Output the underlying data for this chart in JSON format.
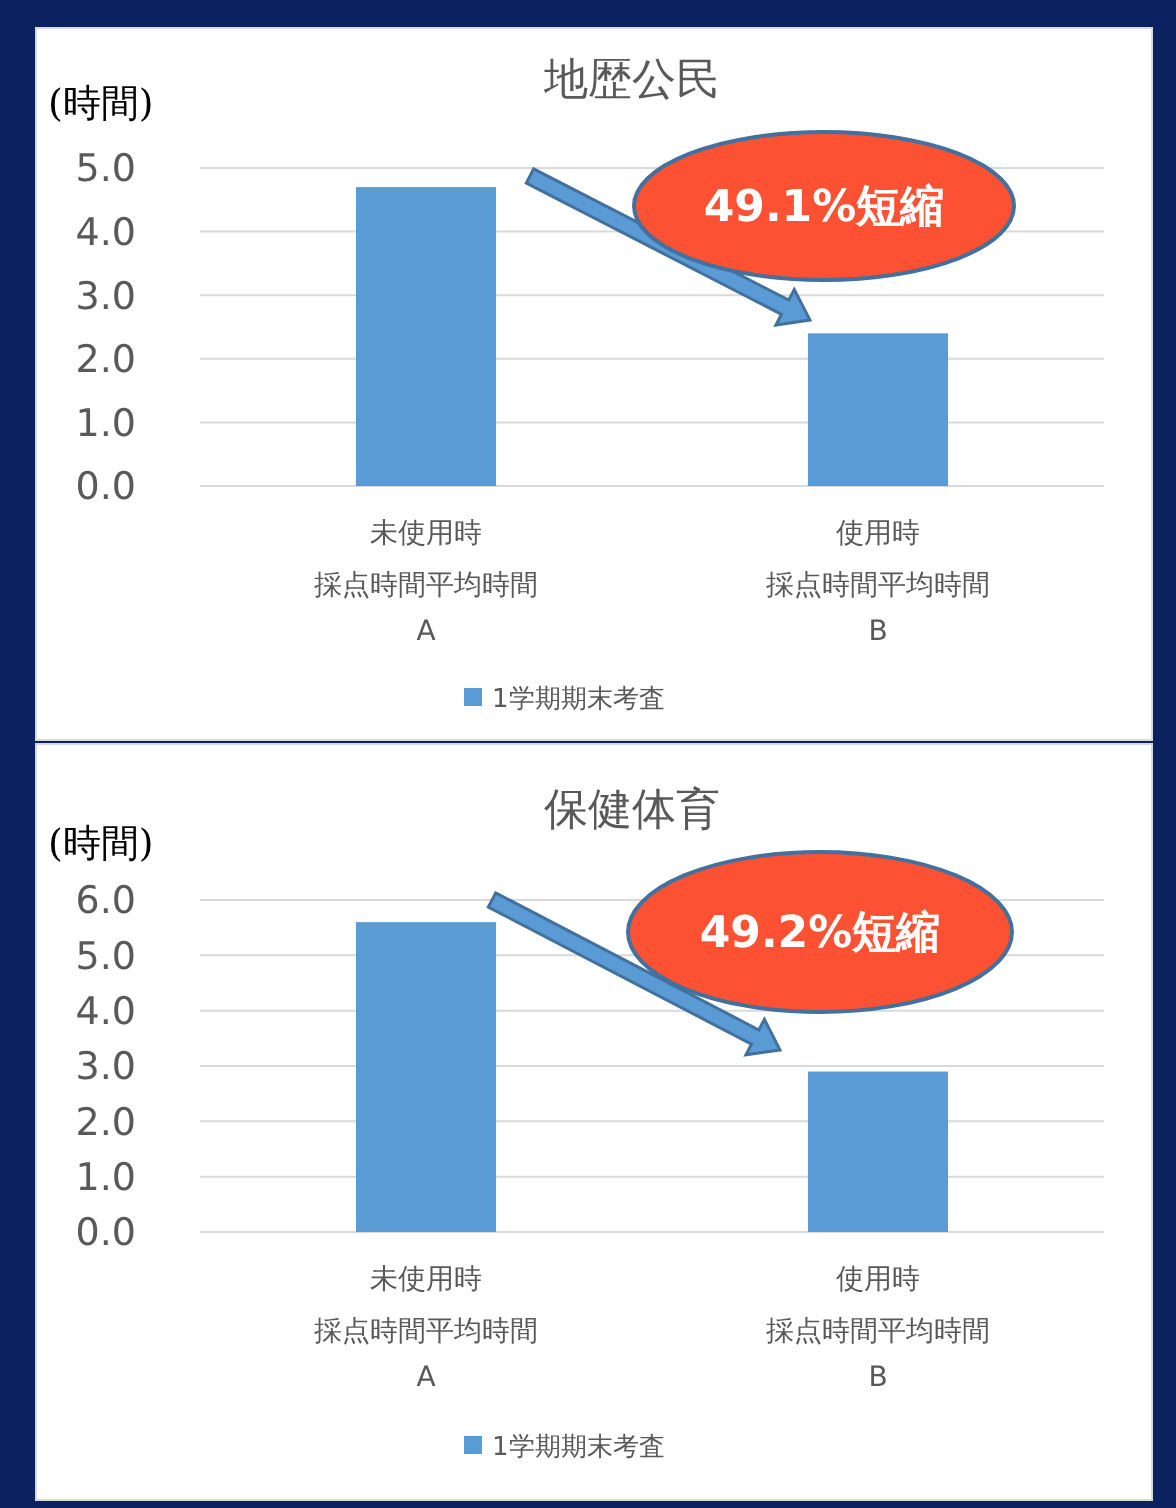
{
  "chart_data": [
    {
      "type": "bar",
      "title": "地歴公民",
      "ylabel": "(時間)",
      "categories": [
        "未使用時採点時間平均時間\nA",
        "使用時採点時間平均時間\nB"
      ],
      "series": [
        {
          "name": "1学期期末考査",
          "color": "#5b9bd5",
          "values": [
            4.7,
            2.4
          ]
        }
      ],
      "ylim": [
        0,
        5
      ],
      "yticks": [
        {
          "value": 0,
          "label": "0.0"
        },
        {
          "value": 1,
          "label": "1.0"
        },
        {
          "value": 2,
          "label": "2.0"
        },
        {
          "value": 3,
          "label": "3.0"
        },
        {
          "value": 4,
          "label": "4.0"
        },
        {
          "value": 5,
          "label": "5.0"
        }
      ],
      "grid": "y",
      "legend": "bottom",
      "annotations": [
        "49.1%短縮"
      ]
    },
    {
      "type": "bar",
      "title": "保健体育",
      "ylabel": "(時間)",
      "categories": [
        "未使用時採点時間平均時間\nA",
        "使用時採点時間平均時間\nB"
      ],
      "series": [
        {
          "name": "1学期期末考査",
          "color": "#5b9bd5",
          "values": [
            5.6,
            2.9
          ]
        }
      ],
      "ylim": [
        0,
        6
      ],
      "yticks": [
        {
          "value": 0,
          "label": "0.0"
        },
        {
          "value": 1,
          "label": "1.0"
        },
        {
          "value": 2,
          "label": "2.0"
        },
        {
          "value": 3,
          "label": "3.0"
        },
        {
          "value": 4,
          "label": "4.0"
        },
        {
          "value": 5,
          "label": "5.0"
        },
        {
          "value": 6,
          "label": "6.0"
        }
      ],
      "grid": "y",
      "legend": "bottom",
      "annotations": [
        "49.2%短縮"
      ]
    }
  ]
}
